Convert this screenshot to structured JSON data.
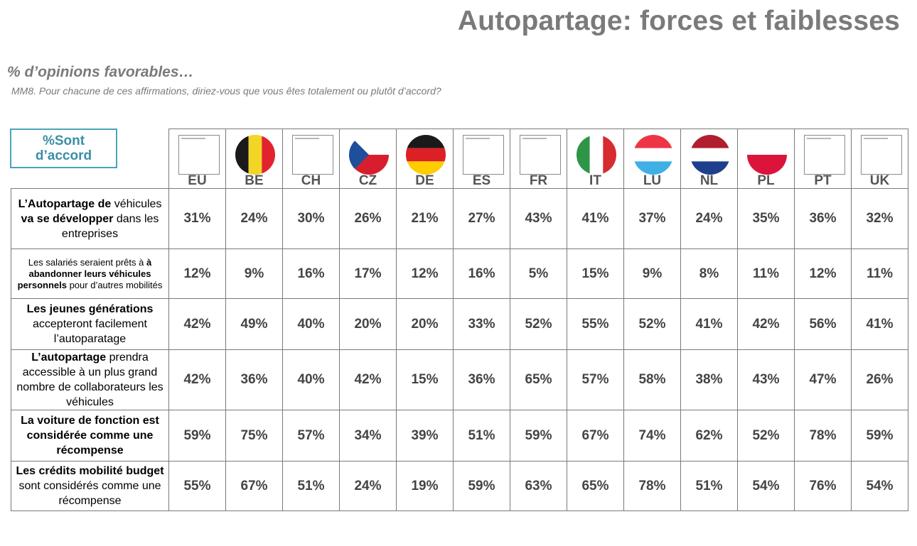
{
  "title": "Autopartage: forces et faiblesses",
  "subtitle": "% d’opinions favorables…",
  "question": "MM8. Pour chacune de ces affirmations, diriez-vous que vous êtes totalement ou plutôt d’accord?",
  "corner_label_line1": "%Sont",
  "corner_label_line2": "d’accord",
  "flags": {
    "BE": [
      "#1a1a1a",
      "#f3d526",
      "#e2232e"
    ],
    "CZ": {
      "top": "#ffffff",
      "bottom": "#d81e2e",
      "triangle": "#1d4f9a"
    },
    "DE": [
      "#1a1a1a",
      "#dd1f26",
      "#ffcc00"
    ],
    "IT": [
      "#2e9547",
      "#ffffff",
      "#d62b2f"
    ],
    "LU": [
      "#ee3545",
      "#ffffff",
      "#3fb0e6"
    ],
    "NL": [
      "#b01e2f",
      "#ffffff",
      "#1e3f8c"
    ],
    "PL": [
      "#ffffff",
      "#dc143c"
    ]
  },
  "chart_data": {
    "type": "table",
    "title": "Autopartage: forces et faiblesses",
    "columns": [
      "EU",
      "BE",
      "CH",
      "CZ",
      "DE",
      "ES",
      "FR",
      "IT",
      "LU",
      "NL",
      "PL",
      "PT",
      "UK"
    ],
    "rows": [
      {
        "label_parts": [
          [
            "L’Autopartage de",
            true
          ],
          [
            " véhicules ",
            false
          ],
          [
            "va se développer",
            true
          ],
          [
            " dans les entreprises",
            false
          ]
        ],
        "values": [
          "31%",
          "24%",
          "30%",
          "26%",
          "21%",
          "27%",
          "43%",
          "41%",
          "37%",
          "24%",
          "35%",
          "36%",
          "32%"
        ]
      },
      {
        "label_parts": [
          [
            "Les salariés seraient prêts à ",
            false
          ],
          [
            "à abandonner  leurs véhicules personnels",
            true
          ],
          [
            " pour d’autres mobilités",
            false
          ]
        ],
        "values": [
          "12%",
          "9%",
          "16%",
          "17%",
          "12%",
          "16%",
          "5%",
          "15%",
          "9%",
          "8%",
          "11%",
          "12%",
          "11%"
        ]
      },
      {
        "label_parts": [
          [
            "Les jeunes générations",
            true
          ],
          [
            " accepteront facilement l’autoparatage",
            false
          ]
        ],
        "values": [
          "42%",
          "49%",
          "40%",
          "20%",
          "20%",
          "33%",
          "52%",
          "55%",
          "52%",
          "41%",
          "42%",
          "56%",
          "41%"
        ]
      },
      {
        "label_parts": [
          [
            "L’autopartage ",
            true
          ],
          [
            " prendra accessible à un plus grand nombre de collaborateurs les véhicules",
            false
          ]
        ],
        "values": [
          "42%",
          "36%",
          "40%",
          "42%",
          "15%",
          "36%",
          "65%",
          "57%",
          "58%",
          "38%",
          "43%",
          "47%",
          "26%"
        ]
      },
      {
        "label_parts": [
          [
            "La voiture de fonction est considérée comme une récompense",
            true
          ]
        ],
        "values": [
          "59%",
          "75%",
          "57%",
          "34%",
          "39%",
          "51%",
          "59%",
          "67%",
          "74%",
          "62%",
          "52%",
          "78%",
          "59%"
        ]
      },
      {
        "label_parts": [
          [
            "Les crédits mobilité budget",
            true
          ],
          [
            " sont considérés comme une récompense",
            false
          ]
        ],
        "values": [
          "55%",
          "67%",
          "51%",
          "24%",
          "19%",
          "59%",
          "63%",
          "65%",
          "78%",
          "51%",
          "54%",
          "76%",
          "54%"
        ]
      }
    ]
  }
}
